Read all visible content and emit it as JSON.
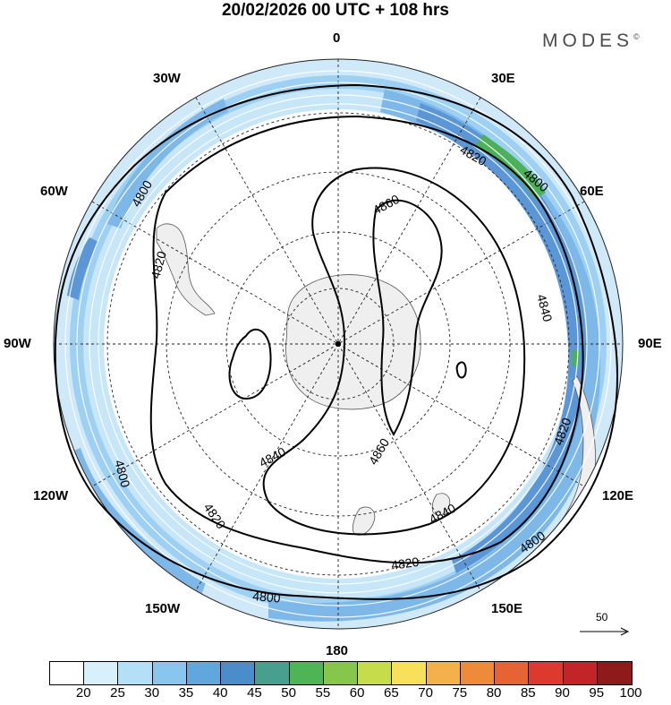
{
  "title": "20/02/2026  00 UTC  + 108 hrs",
  "brand": "MODES",
  "brand_mark": "©",
  "longitude_labels": {
    "lon_0": "0",
    "lon_30e": "30E",
    "lon_60e": "60E",
    "lon_90e": "90E",
    "lon_120e": "120E",
    "lon_150e": "150E",
    "lon_180": "180",
    "lon_150w": "150W",
    "lon_120w": "120W",
    "lon_90w": "90W",
    "lon_60w": "60W",
    "lon_30w": "30W"
  },
  "contour_labels": [
    "4800",
    "4820",
    "4840",
    "4860"
  ],
  "contours": {
    "c4800_a": "4800",
    "c4800_b": "4800",
    "c4800_c": "4800",
    "c4800_d": "4800",
    "c4820_a": "4820",
    "c4820_b": "4820",
    "c4820_c": "4820",
    "c4820_d": "4820",
    "c4840_a": "4840",
    "c4840_b": "4840",
    "c4840_c": "4840",
    "c4860_a": "4860",
    "c4860_b": "4860"
  },
  "wind_scale": {
    "label": "50",
    "icon": "arrow-right-icon"
  },
  "colorbar": {
    "labels": [
      "20",
      "25",
      "30",
      "35",
      "40",
      "45",
      "50",
      "55",
      "60",
      "65",
      "70",
      "75",
      "80",
      "85",
      "90",
      "95",
      "100"
    ],
    "colors": [
      "#ffffff",
      "#d7f0fb",
      "#b4e0f7",
      "#89c6ee",
      "#5fa7dd",
      "#4b8ccb",
      "#47a08e",
      "#4db553",
      "#86c74b",
      "#c7dc4a",
      "#f7e05a",
      "#f4b04a",
      "#ee8b3a",
      "#e66434",
      "#dd3a2e",
      "#c12528",
      "#8f1a1a"
    ]
  },
  "colors": {
    "land": "#efefef",
    "coast": "#555555",
    "jet_core": "#5b93d6",
    "jet_mid": "#8cc0ec",
    "jet_outer": "#bfe1f7"
  }
}
